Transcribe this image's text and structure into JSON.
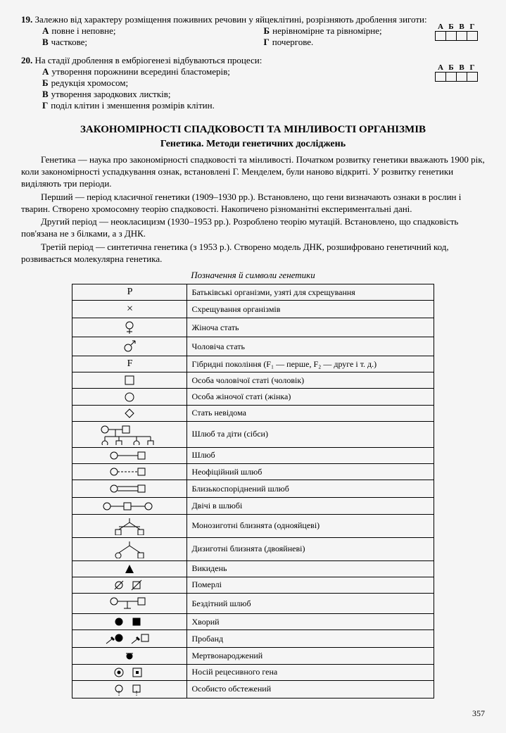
{
  "q19": {
    "num": "19.",
    "text": "Залежно від характеру розміщення поживних речовин у яйцеклітині, розрізняють дроблення зиготи:",
    "optA": "повне і неповне;",
    "optB": "часткове;",
    "optBb": "нерівномірне та рівномірне;",
    "optG": "почергове.",
    "gridHead": [
      "А",
      "Б",
      "В",
      "Г"
    ]
  },
  "q20": {
    "num": "20.",
    "text": "На стадії дроблення в ембріогенезі відбуваються процеси:",
    "optA": "утворення порожнини всередині бластомерів;",
    "optB": "редукція хромосом;",
    "optV": "утворення зародкових листків;",
    "optG": "поділ клітин і зменшення розмірів клітин.",
    "gridHead": [
      "А",
      "Б",
      "В",
      "Г"
    ]
  },
  "section_title": "ЗАКОНОМІРНОСТІ СПАДКОВОСТІ ТА МІНЛИВОСТІ ОРГАНІЗМІВ",
  "subtitle": "Генетика. Методи генетичних досліджень",
  "para1": "Генетика — наука про закономірності спадковості та мінливості. Початком розвитку генетики вважають 1900 рік, коли закономірності успадкування ознак, встановлені Г. Менделем, були наново відкриті. У розвитку генетики виділяють три періоди.",
  "para2": "Перший — період класичної генетики (1909–1930 рр.). Встановлено, що гени визначають ознаки в рослин і тварин. Створено хромосомну теорію спадковості. Накопичено різноманітні експериментальні дані.",
  "para3": "Другий період — неокласицизм (1930–1953 рр.). Розроблено теорію мутацій. Встановлено, що спадковість пов'язана не з білками, а з ДНК.",
  "para4": "Третій період — синтетична генетика (з 1953 р.). Створено модель ДНК, розшифровано генетичний код, розвивається молекулярна генетика.",
  "table_caption": "Позначення й символи генетики",
  "rows": [
    {
      "sym": "P",
      "desc": "Батьківські організми, узяті для схрещування"
    },
    {
      "sym": "×",
      "desc": "Схрещування організмів"
    },
    {
      "sym": "female",
      "desc": "Жіноча стать"
    },
    {
      "sym": "male",
      "desc": "Чоловіча стать"
    },
    {
      "sym": "F",
      "desc": "Гібридні покоління (F₁ — перше, F₂ — друге і т. д.)"
    },
    {
      "sym": "square",
      "desc": "Особа чоловічої статі (чоловік)"
    },
    {
      "sym": "circle",
      "desc": "Особа жіночої статі (жінка)"
    },
    {
      "sym": "diamond",
      "desc": "Стать невідома"
    },
    {
      "sym": "family",
      "desc": "Шлюб та діти (сібси)"
    },
    {
      "sym": "marriage",
      "desc": "Шлюб"
    },
    {
      "sym": "unofficial",
      "desc": "Неофіційний шлюб"
    },
    {
      "sym": "consang",
      "desc": "Близькоспоріднений шлюб"
    },
    {
      "sym": "twice",
      "desc": "Двічі в шлюбі"
    },
    {
      "sym": "mono",
      "desc": "Монозиготні близнята (однояйцеві)"
    },
    {
      "sym": "dizygo",
      "desc": "Дизиготні близнята (двояйневі)"
    },
    {
      "sym": "miscarriage",
      "desc": "Викидень"
    },
    {
      "sym": "dead",
      "desc": "Померлі"
    },
    {
      "sym": "childless",
      "desc": "Бездітний шлюб"
    },
    {
      "sym": "sick",
      "desc": "Хворий"
    },
    {
      "sym": "proband",
      "desc": "Пробанд"
    },
    {
      "sym": "stillborn",
      "desc": "Мертвонароджений"
    },
    {
      "sym": "carrier",
      "desc": "Носій рецесивного гена"
    },
    {
      "sym": "examined",
      "desc": "Особисто обстежений"
    }
  ],
  "page_number": "357"
}
